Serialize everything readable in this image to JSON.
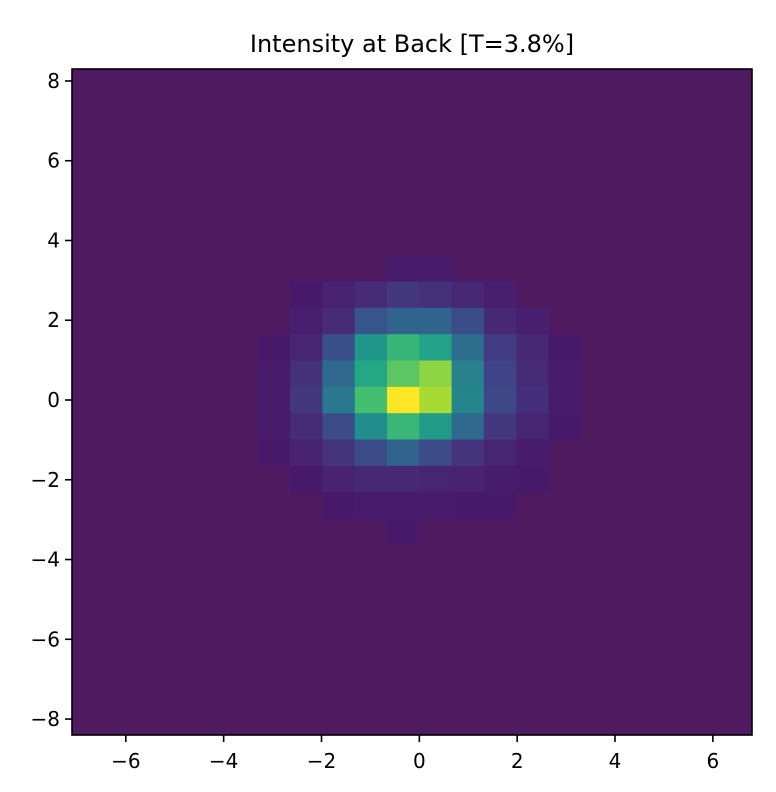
{
  "chart_data": {
    "type": "heatmap",
    "title": "Intensity at Back [T=3.8%]",
    "xlabel": "",
    "ylabel": "",
    "xlim": [
      -7.1,
      6.8
    ],
    "ylim": [
      -8.4,
      8.3
    ],
    "colormap": "viridis",
    "background_value": 0.0,
    "cell_size": 0.66,
    "x_centers": [
      -3.63,
      -2.97,
      -2.31,
      -1.65,
      -0.99,
      -0.33,
      0.33,
      0.99,
      1.65,
      2.31,
      2.97,
      3.63
    ],
    "y_centers": [
      3.3,
      2.64,
      1.98,
      1.32,
      0.66,
      0.0,
      -0.66,
      -1.32,
      -1.98,
      -2.64,
      -3.3
    ],
    "values": [
      [
        0.0,
        0.0,
        0.0,
        0.0,
        0.0,
        0.02,
        0.02,
        0.0,
        0.0,
        0.0,
        0.0,
        0.0
      ],
      [
        0.0,
        0.0,
        0.01,
        0.04,
        0.07,
        0.11,
        0.09,
        0.06,
        0.03,
        0.0,
        0.0,
        0.0
      ],
      [
        0.0,
        0.0,
        0.03,
        0.07,
        0.22,
        0.28,
        0.28,
        0.19,
        0.06,
        0.03,
        0.0,
        0.0
      ],
      [
        0.0,
        0.01,
        0.05,
        0.2,
        0.5,
        0.64,
        0.55,
        0.32,
        0.12,
        0.06,
        0.01,
        0.0
      ],
      [
        0.0,
        0.02,
        0.09,
        0.3,
        0.58,
        0.73,
        0.82,
        0.4,
        0.15,
        0.07,
        0.02,
        0.0
      ],
      [
        0.0,
        0.02,
        0.11,
        0.36,
        0.68,
        1.0,
        0.86,
        0.42,
        0.17,
        0.08,
        0.02,
        0.0
      ],
      [
        0.0,
        0.02,
        0.07,
        0.18,
        0.46,
        0.65,
        0.52,
        0.3,
        0.11,
        0.05,
        0.01,
        0.0
      ],
      [
        0.0,
        0.01,
        0.04,
        0.1,
        0.18,
        0.28,
        0.18,
        0.1,
        0.05,
        0.02,
        0.0,
        0.0
      ],
      [
        0.0,
        0.0,
        0.01,
        0.04,
        0.06,
        0.06,
        0.05,
        0.04,
        0.02,
        0.01,
        0.0,
        0.0
      ],
      [
        0.0,
        0.0,
        0.0,
        0.01,
        0.02,
        0.02,
        0.02,
        0.01,
        0.01,
        0.0,
        0.0,
        0.0
      ],
      [
        0.0,
        0.0,
        0.0,
        0.0,
        0.0,
        0.01,
        0.0,
        0.0,
        0.0,
        0.0,
        0.0,
        0.0
      ]
    ],
    "x_ticks": [
      -6,
      -4,
      -2,
      0,
      2,
      4,
      6
    ],
    "y_ticks": [
      8,
      6,
      4,
      2,
      0,
      -2,
      -4,
      -6,
      -8
    ],
    "x_tick_labels": [
      "−6",
      "−4",
      "−2",
      "0",
      "2",
      "4",
      "6"
    ],
    "y_tick_labels": [
      "8",
      "6",
      "4",
      "2",
      "0",
      "−2",
      "−4",
      "−6",
      "−8"
    ],
    "grid": false,
    "colors": {
      "background": "#4f1a60",
      "axes": "#000000"
    }
  }
}
